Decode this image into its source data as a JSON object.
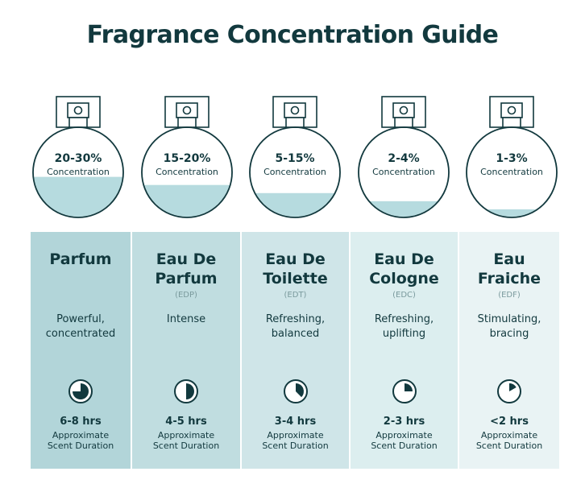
{
  "title": "Fragrance Concentration Guide",
  "colors": {
    "title": "#12393e",
    "liquid": "#b6dbdf",
    "outline": "#12393e",
    "column_backgrounds": [
      "#b2d5d9",
      "#c0dde0",
      "#cfe5e8",
      "#dceeef",
      "#e9f3f4"
    ]
  },
  "bottles": [
    {
      "percent": "20-30%",
      "concentration_label": "Concentration",
      "fill_fraction": 0.45
    },
    {
      "percent": "15-20%",
      "concentration_label": "Concentration",
      "fill_fraction": 0.36
    },
    {
      "percent": "5-15%",
      "concentration_label": "Concentration",
      "fill_fraction": 0.27
    },
    {
      "percent": "2-4%",
      "concentration_label": "Concentration",
      "fill_fraction": 0.18
    },
    {
      "percent": "1-3%",
      "concentration_label": "Concentration",
      "fill_fraction": 0.09
    }
  ],
  "types": [
    {
      "name_line1": "Parfum",
      "name_line2": "",
      "abbr": "",
      "desc_line1": "Powerful,",
      "desc_line2": "concentrated",
      "hours": "6-8 hrs",
      "duration_line1": "Approximate",
      "duration_line2": "Scent Duration",
      "clock_icon": "clock-pie-icon",
      "clock_fraction": 0.75
    },
    {
      "name_line1": "Eau De",
      "name_line2": "Parfum",
      "abbr": "(EDP)",
      "desc_line1": "Intense",
      "desc_line2": "",
      "hours": "4-5 hrs",
      "duration_line1": "Approximate",
      "duration_line2": "Scent Duration",
      "clock_icon": "clock-pie-icon",
      "clock_fraction": 0.5
    },
    {
      "name_line1": "Eau De",
      "name_line2": "Toilette",
      "abbr": "(EDT)",
      "desc_line1": "Refreshing,",
      "desc_line2": "balanced",
      "hours": "3-4 hrs",
      "duration_line1": "Approximate",
      "duration_line2": "Scent Duration",
      "clock_icon": "clock-pie-icon",
      "clock_fraction": 0.375
    },
    {
      "name_line1": "Eau De",
      "name_line2": "Cologne",
      "abbr": "(EDC)",
      "desc_line1": "Refreshing,",
      "desc_line2": "uplifting",
      "hours": "2-3 hrs",
      "duration_line1": "Approximate",
      "duration_line2": "Scent Duration",
      "clock_icon": "clock-pie-icon",
      "clock_fraction": 0.25
    },
    {
      "name_line1": "Eau",
      "name_line2": "Fraiche",
      "abbr": "(EDF)",
      "desc_line1": "Stimulating,",
      "desc_line2": "bracing",
      "hours": "<2 hrs",
      "duration_line1": "Approximate",
      "duration_line2": "Scent Duration",
      "clock_icon": "clock-pie-icon",
      "clock_fraction": 0.167
    }
  ]
}
